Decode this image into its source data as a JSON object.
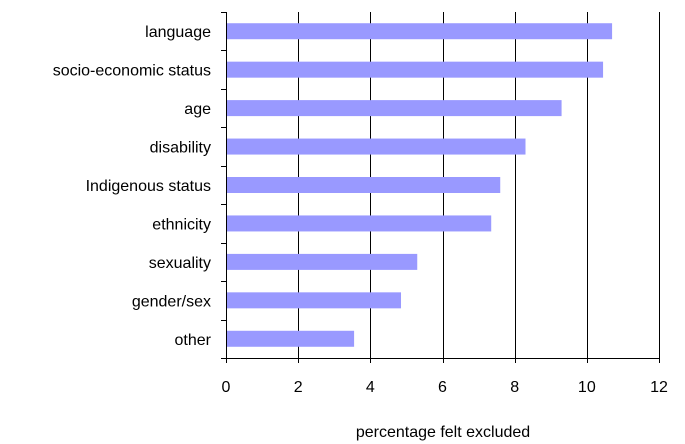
{
  "chart_data": {
    "type": "bar",
    "orientation": "horizontal",
    "title": "",
    "xlabel": "percentage felt excluded",
    "ylabel": "",
    "categories": [
      "language",
      "socio-economic status",
      "age",
      "disability",
      "Indigenous status",
      "ethnicity",
      "sexuality",
      "gender/sex",
      "other"
    ],
    "values": [
      10.7,
      10.45,
      9.3,
      8.3,
      7.6,
      7.35,
      5.3,
      4.85,
      3.55
    ],
    "xlim": [
      0,
      12
    ],
    "xticks": [
      "0",
      "2",
      "4",
      "6",
      "8",
      "10",
      "12"
    ],
    "grid": "vertical",
    "legend": "none",
    "colors": {
      "bar": "#9999ff",
      "grid": "#000000",
      "axis": "#000000"
    }
  }
}
